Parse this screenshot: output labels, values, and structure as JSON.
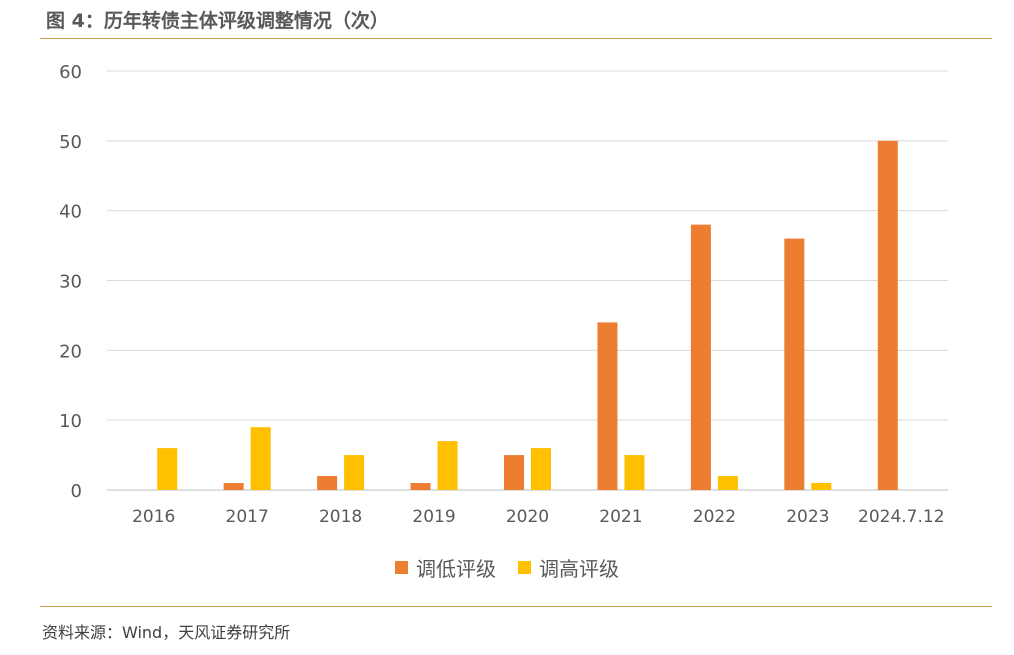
{
  "header": {
    "title": "图 4：历年转债主体评级调整情况（次）"
  },
  "footer": {
    "source": "资料来源：Wind，天风证券研究所"
  },
  "colors": {
    "downgrade": "#ED7D31",
    "upgrade": "#FFC000",
    "grid": "#D9D9D9",
    "rule": "#C8A24A"
  },
  "chart_data": {
    "type": "bar",
    "title": "图 4：历年转债主体评级调整情况（次）",
    "xlabel": "",
    "ylabel": "",
    "categories": [
      "2016",
      "2017",
      "2018",
      "2019",
      "2020",
      "2021",
      "2022",
      "2023",
      "2024.7.12"
    ],
    "series": [
      {
        "name": "调低评级",
        "values": [
          0,
          1,
          2,
          1,
          5,
          24,
          38,
          36,
          50
        ]
      },
      {
        "name": "调高评级",
        "values": [
          6,
          9,
          5,
          7,
          6,
          5,
          2,
          1,
          0
        ]
      }
    ],
    "ylim": [
      0,
      60
    ],
    "yticks": [
      0,
      10,
      20,
      30,
      40,
      50,
      60
    ],
    "grid": true,
    "legend_position": "bottom"
  }
}
